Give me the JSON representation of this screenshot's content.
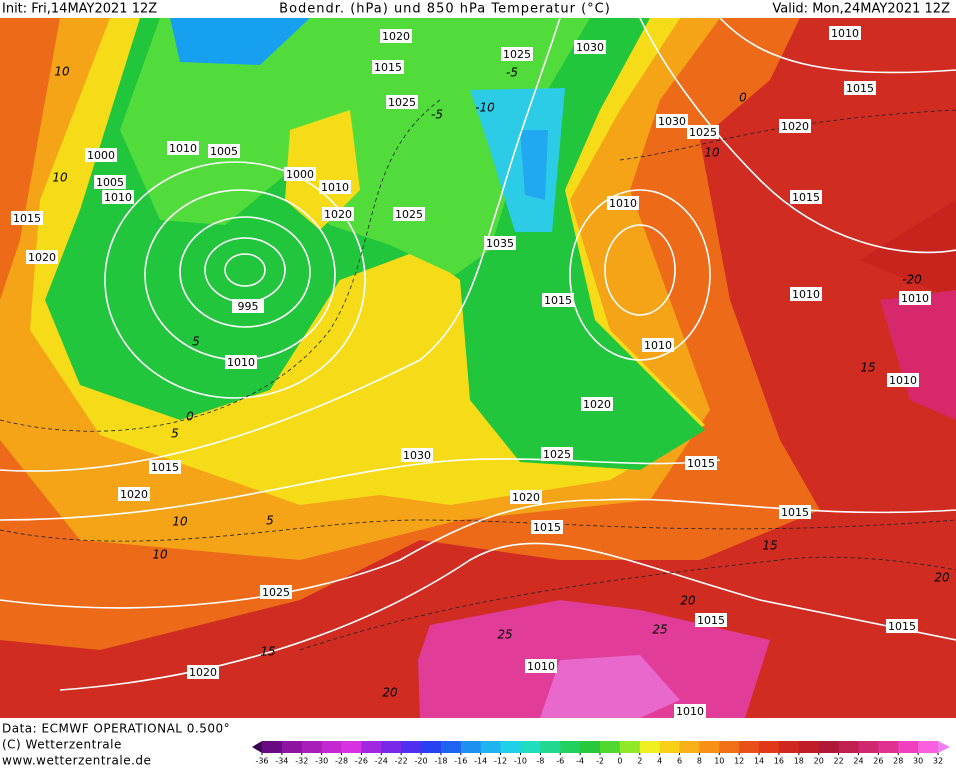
{
  "header": {
    "init": "Init: Fri,14MAY2021 12Z",
    "title": "Bodendr. (hPa) und 850 hPa Temperatur (°C)",
    "valid": "Valid: Mon,24MAY2021 12Z"
  },
  "footer": {
    "data": "Data: ECMWF OPERATIONAL 0.500°",
    "copyright": "(C) Wetterzentrale",
    "url": "www.wetterzentrale.de"
  },
  "isobar_labels": [
    1020,
    1015,
    1025,
    1030,
    1010,
    1015,
    1025,
    1030,
    1025,
    1020,
    1000,
    1010,
    1005,
    1005,
    1010,
    1000,
    1010,
    1020,
    1025,
    1015,
    1015,
    1010,
    1020,
    1035,
    995,
    1015,
    1010,
    1010,
    1010,
    1010,
    1010,
    1020,
    1030,
    1025,
    1015,
    1015,
    1020,
    1020,
    1015,
    1015,
    1025,
    1015,
    1015,
    1020,
    1010,
    1010
  ],
  "isotherm_labels": [
    10,
    -5,
    -10,
    -5,
    0,
    10,
    10,
    5,
    0,
    5,
    10,
    5,
    10,
    15,
    20,
    25,
    25,
    20,
    15,
    20,
    -20,
    15
  ],
  "colorbar": {
    "ticks": [
      -36,
      -34,
      -32,
      -30,
      -28,
      -26,
      -24,
      -22,
      -20,
      -18,
      -16,
      -14,
      -12,
      -10,
      -8,
      -6,
      -4,
      -2,
      0,
      2,
      4,
      6,
      8,
      10,
      12,
      14,
      16,
      18,
      20,
      22,
      24,
      26,
      28,
      30,
      32
    ],
    "colors": [
      "#3c0050",
      "#6a0a82",
      "#8c14a0",
      "#a81eb8",
      "#c428d0",
      "#d832e0",
      "#a028e0",
      "#7a28e8",
      "#5030f0",
      "#2840f0",
      "#1e64f0",
      "#1e90f0",
      "#1eb4f0",
      "#20d0e8",
      "#20dcc0",
      "#20d890",
      "#22d060",
      "#28c83c",
      "#50d830",
      "#90e828",
      "#f0f020",
      "#f8d018",
      "#f8b018",
      "#f89018",
      "#f07018",
      "#e85018",
      "#e03818",
      "#d02820",
      "#c01c28",
      "#b01838",
      "#c02050",
      "#d02870",
      "#e03090",
      "#f040c0",
      "#f860e0",
      "#f080f0"
    ]
  }
}
